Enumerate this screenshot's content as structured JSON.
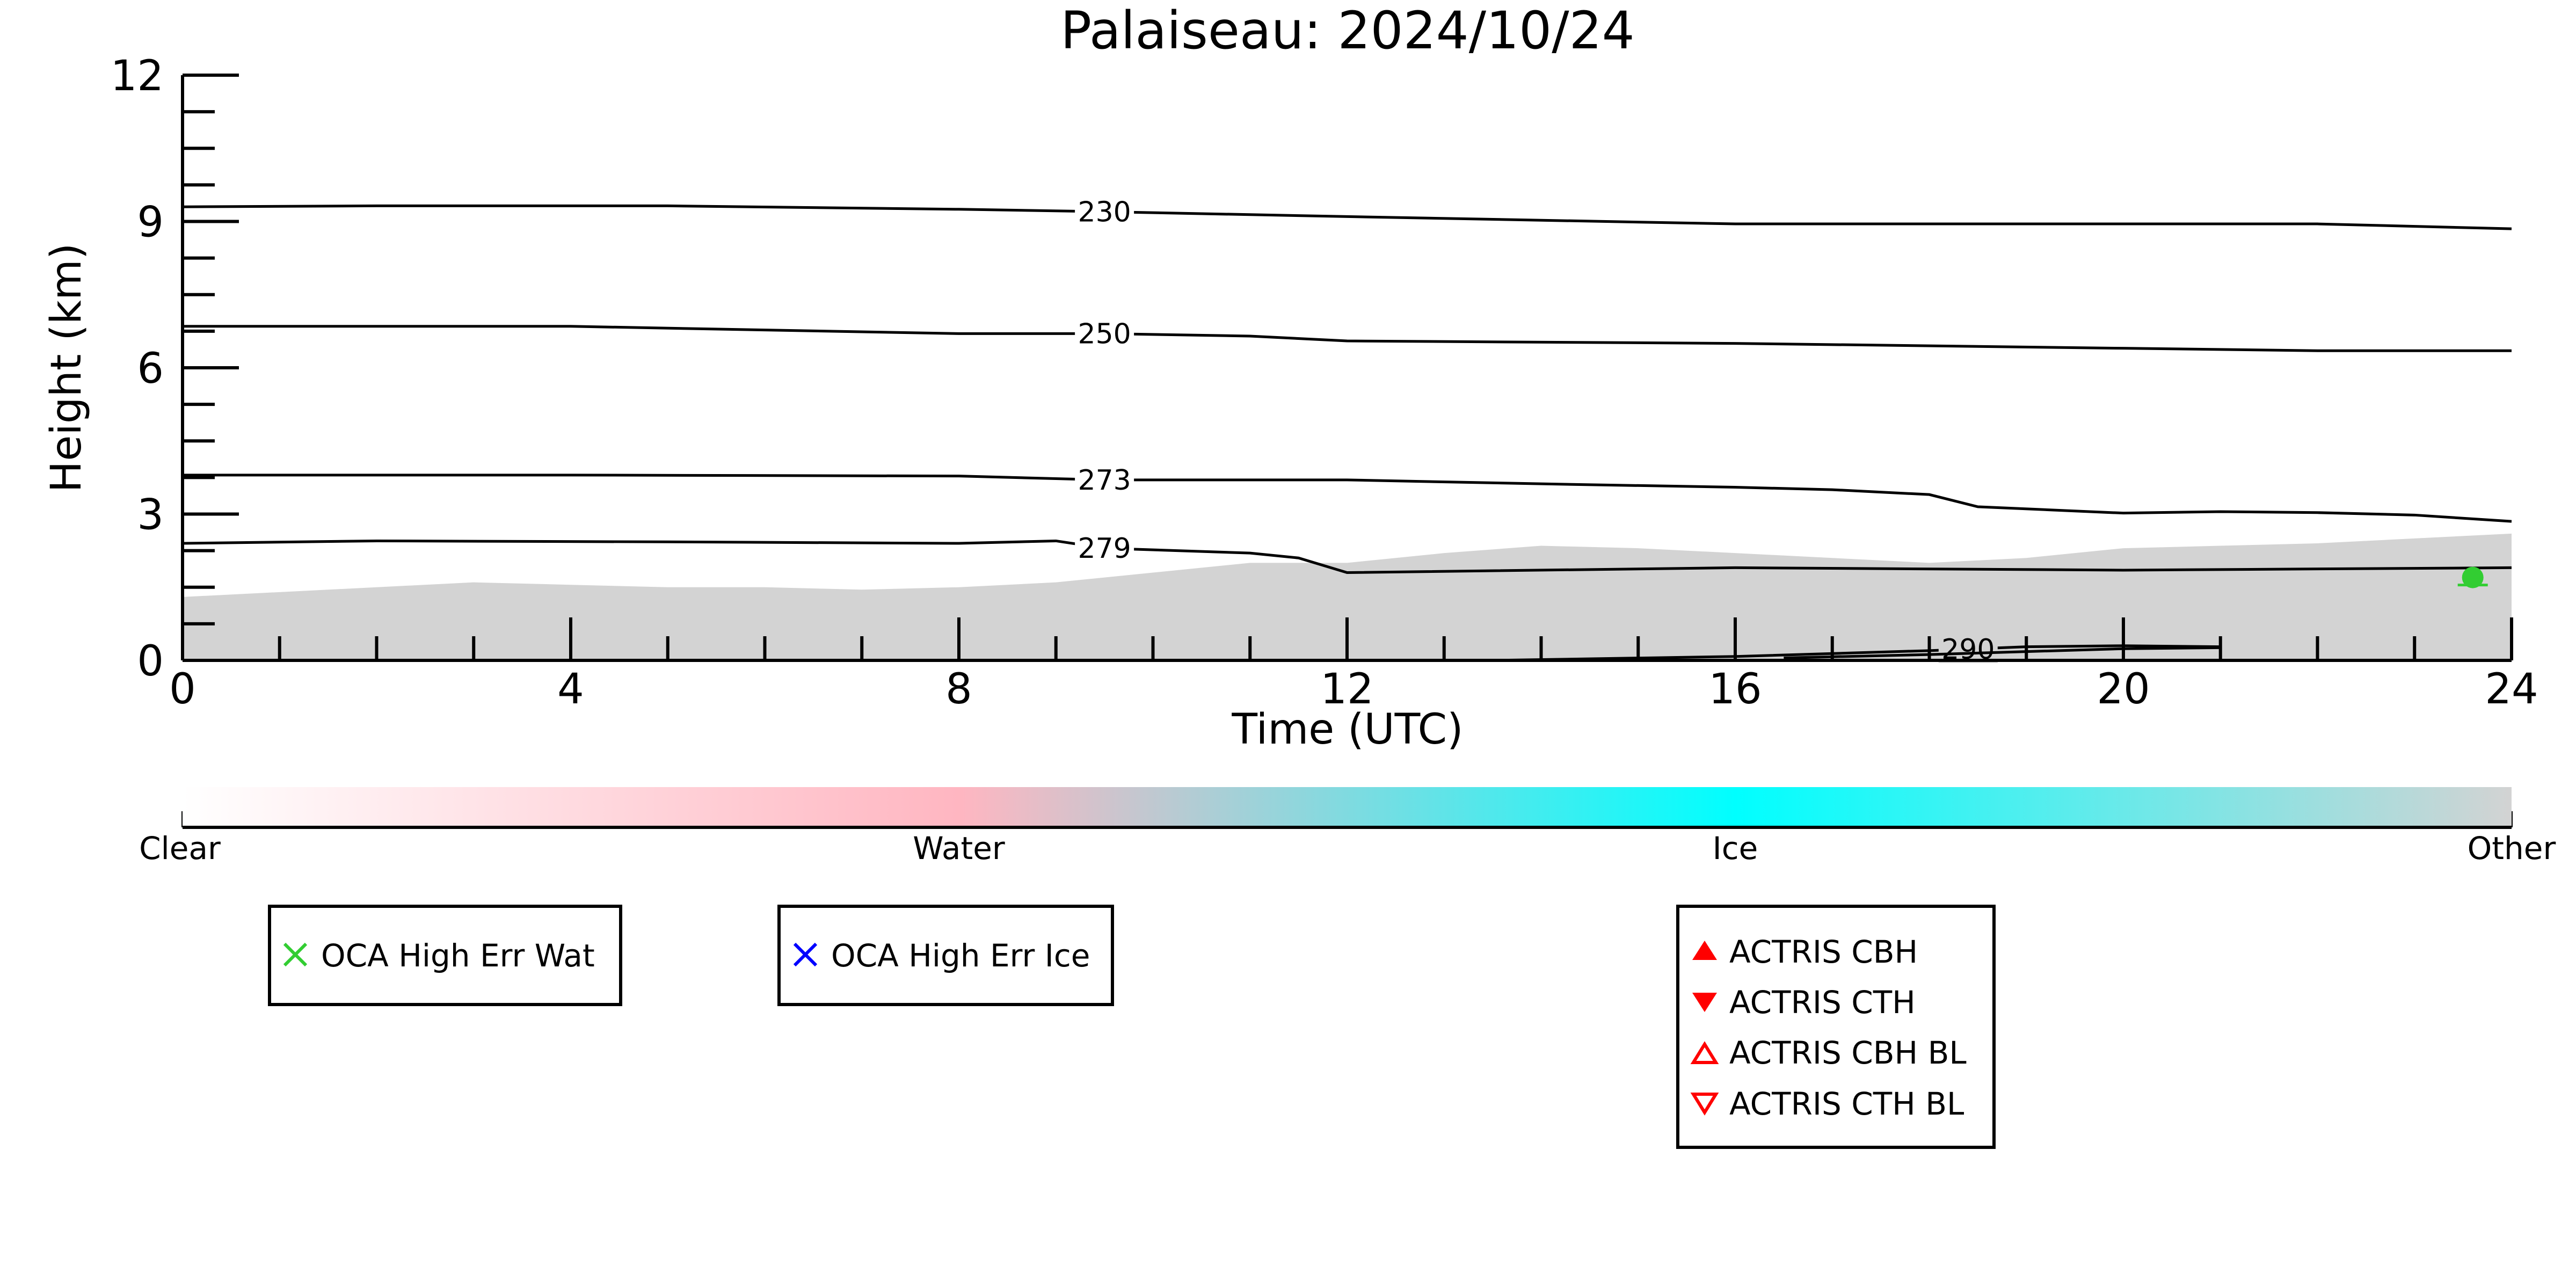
{
  "chart_data": {
    "type": "area",
    "title": "Palaiseau: 2024/10/24",
    "xlabel": "Time (UTC)",
    "ylabel": "Height (km)",
    "xlim": [
      0,
      24
    ],
    "ylim": [
      0,
      12
    ],
    "xticks": [
      "0",
      "4",
      "8",
      "12",
      "16",
      "20",
      "24"
    ],
    "yticks": [
      "0",
      "3",
      "6",
      "9",
      "12"
    ],
    "grid": false,
    "cloud_mask": {
      "name": "Other",
      "color": "#d3d3d3",
      "top_km": [
        [
          0,
          1.3
        ],
        [
          1,
          1.4
        ],
        [
          2,
          1.5
        ],
        [
          3,
          1.6
        ],
        [
          4,
          1.55
        ],
        [
          5,
          1.5
        ],
        [
          6,
          1.5
        ],
        [
          7,
          1.45
        ],
        [
          8,
          1.5
        ],
        [
          9,
          1.6
        ],
        [
          10,
          1.8
        ],
        [
          11,
          2.0
        ],
        [
          12,
          2.0
        ],
        [
          13,
          2.2
        ],
        [
          14,
          2.35
        ],
        [
          15,
          2.3
        ],
        [
          16,
          2.2
        ],
        [
          17,
          2.1
        ],
        [
          18,
          2.0
        ],
        [
          19,
          2.1
        ],
        [
          20,
          2.3
        ],
        [
          21,
          2.35
        ],
        [
          22,
          2.4
        ],
        [
          23,
          2.5
        ],
        [
          24,
          2.6
        ]
      ]
    },
    "contours": [
      {
        "label": "230",
        "label_at": 9.5,
        "points": [
          [
            0,
            9.3
          ],
          [
            2,
            9.32
          ],
          [
            5,
            9.32
          ],
          [
            8,
            9.25
          ],
          [
            9.5,
            9.2
          ],
          [
            12,
            9.1
          ],
          [
            16,
            8.95
          ],
          [
            20,
            8.95
          ],
          [
            22,
            8.95
          ],
          [
            24,
            8.85
          ]
        ]
      },
      {
        "label": "250",
        "label_at": 9.5,
        "points": [
          [
            0,
            6.85
          ],
          [
            4,
            6.85
          ],
          [
            8,
            6.7
          ],
          [
            9.5,
            6.7
          ],
          [
            11,
            6.65
          ],
          [
            12,
            6.55
          ],
          [
            16,
            6.5
          ],
          [
            20,
            6.4
          ],
          [
            22,
            6.35
          ],
          [
            24,
            6.35
          ]
        ]
      },
      {
        "label": "273",
        "label_at": 9.5,
        "points": [
          [
            0,
            3.8
          ],
          [
            4,
            3.8
          ],
          [
            8,
            3.78
          ],
          [
            9.5,
            3.7
          ],
          [
            12,
            3.7
          ],
          [
            14,
            3.62
          ],
          [
            16,
            3.55
          ],
          [
            17,
            3.5
          ],
          [
            18,
            3.4
          ],
          [
            18.5,
            3.15
          ],
          [
            20,
            3.02
          ],
          [
            21,
            3.05
          ],
          [
            22,
            3.03
          ],
          [
            23,
            2.98
          ],
          [
            24,
            2.85
          ]
        ]
      },
      {
        "label": "279",
        "label_at": 9.5,
        "points": [
          [
            0,
            2.4
          ],
          [
            2,
            2.45
          ],
          [
            5,
            2.43
          ],
          [
            8,
            2.4
          ],
          [
            9,
            2.45
          ],
          [
            9.5,
            2.3
          ],
          [
            11,
            2.2
          ],
          [
            11.5,
            2.1
          ],
          [
            12,
            1.8
          ],
          [
            16,
            1.9
          ],
          [
            20,
            1.85
          ],
          [
            24,
            1.9
          ]
        ]
      },
      {
        "label": "290",
        "label_at": 18.4,
        "points": [
          [
            13.5,
            0.0
          ],
          [
            16,
            0.08
          ],
          [
            18,
            0.2
          ],
          [
            19,
            0.28
          ],
          [
            20,
            0.3
          ],
          [
            21,
            0.28
          ]
        ]
      },
      {
        "label": "",
        "label_at": null,
        "points": [
          [
            16.5,
            0.05
          ],
          [
            18,
            0.12
          ],
          [
            20,
            0.24
          ],
          [
            21,
            0.26
          ]
        ]
      }
    ],
    "markers": [
      {
        "type": "OCA High Err Wat",
        "time": 23.6,
        "height_km": 1.7
      }
    ],
    "colorbar": {
      "labels": [
        "Clear",
        "Water",
        "Ice",
        "Other"
      ],
      "colors": [
        "#ffffff",
        "#ffb6c1",
        "#00ffff",
        "#d3d3d3"
      ]
    },
    "legends": [
      {
        "items": [
          {
            "label": "OCA High Err Wat",
            "symbol": "cross",
            "color": "#32cd32"
          }
        ]
      },
      {
        "items": [
          {
            "label": "OCA High Err Ice",
            "symbol": "cross",
            "color": "#0000ff"
          }
        ]
      },
      {
        "items": [
          {
            "label": "ACTRIS CBH",
            "symbol": "triangle-up-filled",
            "color": "#ff0000"
          },
          {
            "label": "ACTRIS CTH",
            "symbol": "triangle-down-filled",
            "color": "#ff0000"
          },
          {
            "label": "ACTRIS CBH BL",
            "symbol": "triangle-up-open",
            "color": "#ff0000"
          },
          {
            "label": "ACTRIS CTH BL",
            "symbol": "triangle-down-open",
            "color": "#ff0000"
          }
        ]
      }
    ]
  }
}
